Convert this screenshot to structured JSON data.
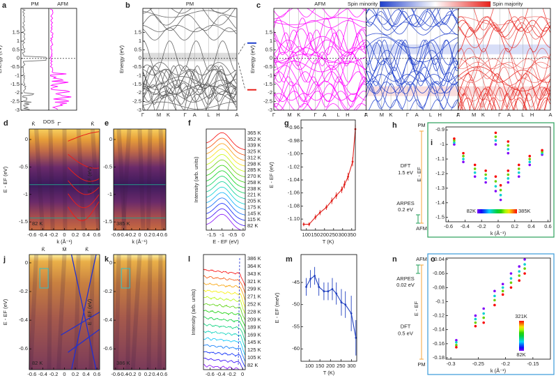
{
  "chart_data": [
    {
      "type": "dos",
      "label": "a",
      "titles": [
        "PM",
        "AFM"
      ],
      "title_colors": [
        "#808080",
        "#ff00ff"
      ],
      "band_colors": [
        "#707070",
        "#ff00ff"
      ],
      "ylabel": "Energy (eV)",
      "xlabel": "DOS",
      "ylim": [
        -3,
        2.9
      ],
      "yticks": [
        1.5,
        1,
        0.5,
        0,
        -0.5,
        -1,
        -1.5,
        -2,
        -2.5,
        -3
      ]
    },
    {
      "type": "band",
      "label": "b",
      "titles": [
        "PM"
      ],
      "title_colors": [
        "#808080"
      ],
      "band_colors": [
        "#555555"
      ],
      "ylabel": "Energy (eV)",
      "categories": [
        "Γ",
        "M",
        "K",
        "Γ",
        "A",
        "L",
        "H",
        "A"
      ],
      "ylim": [
        -3,
        2.9
      ],
      "yticks": [
        1.5,
        1,
        0.5,
        0,
        -0.5,
        -1,
        -1.5,
        -2,
        -2.5,
        -3
      ]
    },
    {
      "type": "band",
      "label": "c",
      "titles": [
        "AFM"
      ],
      "title_colors": [
        "#ff00ff"
      ],
      "band_colors": [
        "#ff00ff",
        "#1f3fcc",
        "#e8201a"
      ],
      "ylabel": "Energy (eV)",
      "colorbar_labels": [
        "Spin minority",
        "Spin majority"
      ],
      "categories": [
        "Γ",
        "M",
        "K",
        "Γ",
        "A",
        "L",
        "H",
        "A"
      ],
      "ylim": [
        -3,
        2.9
      ],
      "yticks": [
        1.5,
        1,
        0.5,
        0,
        -0.5,
        -1,
        -1.5,
        -2,
        -2.5,
        -3
      ]
    },
    {
      "type": "image",
      "label": "d",
      "ylabel": "E - EF (eV)",
      "xlabel": "k (Å⁻¹)",
      "top_labels": [
        "K̄",
        "Γ̄",
        "K̄"
      ],
      "temperature": "82 K",
      "xlim": [
        -0.65,
        0.65
      ],
      "xticks": [
        -0.6,
        -0.4,
        -0.2,
        0,
        0.2,
        0.4,
        0.6
      ],
      "ylim": [
        -1.65,
        0.19
      ],
      "yticks": [
        0,
        -0.5,
        -1,
        -1.5
      ]
    },
    {
      "type": "image",
      "label": "e",
      "ylabel": "E - EF (eV)",
      "xlabel": "k (Å⁻¹)",
      "temperature": "385 K",
      "xlim": [
        -0.65,
        0.65
      ],
      "xticks": [
        -0.6,
        -0.4,
        -0.2,
        0,
        0.2,
        0.4,
        0.6
      ],
      "ylim": [
        -1.65,
        0.19
      ],
      "yticks": [
        0,
        -0.5,
        -1,
        -1.5
      ]
    },
    {
      "type": "waterfall",
      "label": "f",
      "ylabel": "Intensity (arb. units)",
      "xlabel": "E - EF (eV)",
      "xlim": [
        -1.75,
        0.1
      ],
      "xticks": [
        -1.5,
        -1,
        -0.5,
        0
      ],
      "temperatures": [
        "365 K",
        "352 K",
        "339 K",
        "325 K",
        "312 K",
        "298 K",
        "285 K",
        "270 K",
        "258 K",
        "238 K",
        "221 K",
        "205 K",
        "175 K",
        "145 K",
        "115 K",
        "82 K"
      ]
    },
    {
      "type": "line",
      "label": "g",
      "xlabel": "T (K)",
      "ylabel": "E - EF (eV)",
      "color": "#e0201b",
      "x": [
        85,
        115,
        150,
        175,
        210,
        240,
        265,
        295,
        310,
        330,
        355,
        370
      ],
      "values": [
        -1.108,
        -1.108,
        -1.097,
        -1.09,
        -1.082,
        -1.072,
        -1.064,
        -1.055,
        -1.047,
        -1.035,
        -1.012,
        -0.962
      ],
      "errors": [
        0.003,
        0.003,
        0.004,
        0.004,
        0.004,
        0.005,
        0.005,
        0.005,
        0.006,
        0.006,
        0.007,
        0.007
      ],
      "xlim": [
        70,
        370
      ],
      "xticks": [
        100,
        150,
        200,
        250,
        300,
        350
      ],
      "ylim": [
        -1.117,
        -0.948
      ],
      "yticks": [
        -0.96,
        -0.98,
        {
          "value": -1,
          "label": "-1.00"
        },
        -1.02,
        -1.04,
        -1.06,
        -1.08,
        {
          "value": -1.1,
          "label": "-1.10"
        }
      ]
    },
    {
      "type": "diagram",
      "label": "h",
      "top": "PM",
      "bottom": "AFM",
      "short_end": "bottom",
      "long": {
        "text": [
          "DFT",
          "1.5 eV"
        ],
        "color": "#f5a43a"
      },
      "short": {
        "text": [
          "ARPES",
          "0.2 eV"
        ],
        "color": "#1e9e55"
      }
    },
    {
      "type": "scatter",
      "label": "i",
      "ylabel": "E - EF",
      "xlabel": "k (Å⁻¹)",
      "frame_color": "#2aa05a",
      "colorbar_orientation": "horizontal",
      "colorbar_ticks": [
        {
          "value": 82,
          "label": "82K"
        },
        {
          "value": 385,
          "label": "385K"
        }
      ],
      "x": [
        -0.53,
        -0.53,
        -0.53,
        -0.53,
        -0.42,
        -0.42,
        -0.42,
        -0.42,
        -0.28,
        -0.28,
        -0.28,
        -0.28,
        -0.15,
        -0.15,
        -0.15,
        -0.15,
        -0.03,
        -0.03,
        -0.03,
        -0.03,
        -0.03,
        -0.03,
        -0.03,
        -0.03,
        0.03,
        0.03,
        0.03,
        0.03,
        0.12,
        0.12,
        0.12,
        0.12,
        0.12,
        0.12,
        0.12,
        0.12,
        0.25,
        0.25,
        0.25,
        0.25,
        0.38,
        0.38,
        0.38,
        0.38,
        0.53,
        0.53,
        0.53,
        0.53
      ],
      "values": [
        -1.0,
        -0.987,
        -0.973,
        -0.96,
        -1.12,
        -1.1,
        -1.08,
        -1.06,
        -1.22,
        -1.193,
        -1.167,
        -1.14,
        -1.26,
        -1.233,
        -1.207,
        -1.18,
        -1.32,
        -1.287,
        -1.253,
        -1.22,
        -1.0,
        -0.973,
        -0.947,
        -0.92,
        -1.38,
        -1.347,
        -1.313,
        -1.28,
        -1.06,
        -1.033,
        -1.007,
        -0.98,
        -1.26,
        -1.233,
        -1.207,
        -1.18,
        -1.22,
        -1.193,
        -1.167,
        -1.14,
        -1.14,
        -1.12,
        -1.1,
        -1.08,
        -1.07,
        -1.06,
        -1.05,
        -1.04
      ],
      "temperature": [
        82,
        183,
        284,
        385,
        82,
        183,
        284,
        385,
        82,
        183,
        284,
        385,
        82,
        183,
        284,
        385,
        82,
        183,
        284,
        385,
        82,
        183,
        284,
        385,
        82,
        183,
        284,
        385,
        82,
        183,
        284,
        385,
        82,
        183,
        284,
        385,
        82,
        183,
        284,
        385,
        82,
        183,
        284,
        385,
        82,
        183,
        284,
        385
      ],
      "xlim": [
        -0.63,
        0.63
      ],
      "xticks": [
        -0.6,
        -0.4,
        -0.2,
        0,
        0.2,
        0.4,
        0.6
      ],
      "ylim": [
        -1.53,
        -0.88
      ],
      "yticks": [
        -0.9,
        -1,
        -1.1,
        -1.2,
        -1.3,
        -1.4,
        -1.5
      ]
    },
    {
      "type": "image",
      "label": "j",
      "ylabel": "E - EF (eV)",
      "xlabel": "k (Å⁻¹)",
      "top_labels": [
        "K̄",
        "M̄",
        "K̄"
      ],
      "temperature": "82 K",
      "xlim": [
        -0.65,
        0.65
      ],
      "xticks": [
        -0.6,
        -0.4,
        -0.2,
        0,
        0.2,
        0.4,
        0.6
      ],
      "ylim": [
        -0.745,
        0.058
      ],
      "yticks": [
        0,
        -0.2,
        -0.4,
        -0.6
      ]
    },
    {
      "type": "image",
      "label": "k",
      "ylabel": "E - EF (eV)",
      "xlabel": "k (Å⁻¹)",
      "temperature": "386 K",
      "xlim": [
        -0.65,
        0.65
      ],
      "xticks": [
        -0.6,
        -0.4,
        -0.2,
        0,
        0.2,
        0.4,
        0.6
      ],
      "ylim": [
        -0.745,
        0.058
      ],
      "yticks": [
        0,
        -0.2,
        -0.4,
        -0.6
      ]
    },
    {
      "type": "waterfall",
      "label": "l",
      "ylabel": "Intensity (arb. units)",
      "xlabel": "E - EF (eV)",
      "xlim": [
        -0.72,
        0.05
      ],
      "xticks": [
        -0.6,
        -0.4,
        -0.2,
        0
      ],
      "temperatures": [
        "386 K",
        "364 K",
        "343 K",
        "321 K",
        "299 K",
        "271 K",
        "252 K",
        "228 K",
        "209 K",
        "189 K",
        "169 K",
        "145 K",
        "125 K",
        "105 K",
        "82 K"
      ]
    },
    {
      "type": "line",
      "label": "m",
      "xlabel": "T (K)",
      "ylabel": "E - EF (meV)",
      "color": "#2040c0",
      "x": [
        85,
        105,
        125,
        145,
        169,
        189,
        209,
        228,
        252,
        271,
        299,
        321
      ],
      "values": [
        -46,
        -44.2,
        -43.5,
        -46,
        -47,
        -47,
        -46.5,
        -47.5,
        -49.5,
        -50,
        -52,
        -57.5
      ],
      "errors": [
        2,
        2,
        2,
        2,
        2,
        2,
        2.5,
        2.5,
        3,
        3,
        4,
        4
      ],
      "xlim": [
        60,
        325
      ],
      "xticks": [
        100,
        150,
        200,
        250,
        300
      ],
      "ylim": [
        -62.8,
        -38.7
      ],
      "yticks": [
        -45,
        -50,
        -55,
        -60
      ]
    },
    {
      "type": "diagram",
      "label": "n",
      "top": "AFM",
      "bottom": "PM",
      "short_end": "top",
      "long": {
        "text": [
          "DFT",
          "0.5 eV"
        ],
        "color": "#f5a43a"
      },
      "short": {
        "text": [
          "ARPES",
          "0.02 eV"
        ],
        "color": "#1e9e55"
      }
    },
    {
      "type": "scatter",
      "label": "o",
      "ylabel": "E - EF",
      "xlabel": "k (Å⁻¹)",
      "frame_color": "#3a9ad8",
      "colorbar_orientation": "vertical",
      "colorbar_ticks": [
        {
          "value": 82,
          "label": "82K"
        },
        {
          "value": 321,
          "label": "321K"
        }
      ],
      "x": [
        -0.29,
        -0.29,
        -0.29,
        -0.29,
        -0.255,
        -0.255,
        -0.255,
        -0.255,
        -0.24,
        -0.24,
        -0.24,
        -0.24,
        -0.22,
        -0.22,
        -0.22,
        -0.22,
        -0.205,
        -0.205,
        -0.205,
        -0.205,
        -0.19,
        -0.19,
        -0.19,
        -0.19,
        -0.175,
        -0.175,
        -0.175,
        -0.175,
        -0.165,
        -0.165,
        -0.165,
        -0.165
      ],
      "values": [
        -0.155,
        -0.158,
        -0.162,
        -0.165,
        -0.12,
        -0.125,
        -0.13,
        -0.135,
        -0.11,
        -0.117,
        -0.123,
        -0.13,
        -0.085,
        -0.092,
        -0.098,
        -0.105,
        -0.075,
        -0.08,
        -0.085,
        -0.09,
        -0.06,
        -0.067,
        -0.073,
        -0.08,
        -0.05,
        -0.057,
        -0.063,
        -0.07,
        -0.04,
        -0.047,
        -0.053,
        -0.06
      ],
      "temperature": [
        82,
        162,
        241,
        321,
        82,
        162,
        241,
        321,
        82,
        162,
        241,
        321,
        82,
        162,
        241,
        321,
        82,
        162,
        241,
        321,
        82,
        162,
        241,
        321,
        82,
        162,
        241,
        321,
        82,
        162,
        241,
        321
      ],
      "xlim": [
        -0.309,
        -0.118
      ],
      "xticks": [
        -0.3,
        -0.25,
        -0.2,
        -0.15
      ],
      "ylim": [
        -0.182,
        -0.038
      ],
      "yticks": [
        -0.04,
        -0.06,
        -0.08,
        -0.1,
        -0.12,
        -0.14,
        -0.16,
        -0.18
      ]
    }
  ]
}
